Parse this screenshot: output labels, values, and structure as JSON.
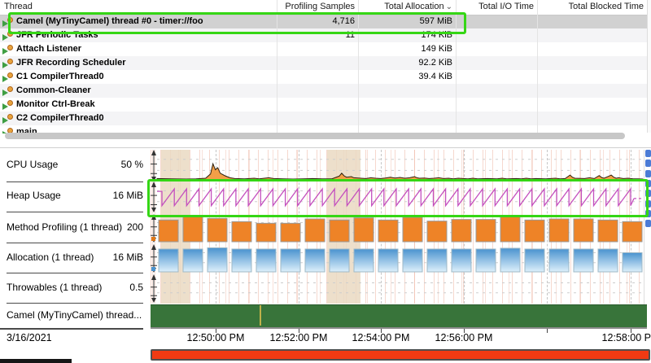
{
  "thread_table": {
    "columns": [
      {
        "label": "Thread",
        "align": "left"
      },
      {
        "label": "Profiling Samples",
        "align": "right"
      },
      {
        "label": "Total Allocation",
        "align": "right",
        "sorted": true
      },
      {
        "label": "Total I/O Time",
        "align": "right"
      },
      {
        "label": "Total Blocked Time",
        "align": "right"
      }
    ],
    "sort_indicator": "⌄",
    "rows": [
      {
        "thread": "Camel (MyTinyCamel) thread #0 - timer://foo",
        "samples": "4,716",
        "allocation": "597 MiB",
        "io": "",
        "blocked": "",
        "selected": true,
        "annotated": true
      },
      {
        "thread": "JFR Periodic Tasks",
        "samples": "11",
        "allocation": "174 KiB",
        "io": "",
        "blocked": ""
      },
      {
        "thread": "Attach Listener",
        "samples": "",
        "allocation": "149 KiB",
        "io": "",
        "blocked": ""
      },
      {
        "thread": "JFR Recording Scheduler",
        "samples": "",
        "allocation": "92.2 KiB",
        "io": "",
        "blocked": ""
      },
      {
        "thread": "C1 CompilerThread0",
        "samples": "",
        "allocation": "39.4 KiB",
        "io": "",
        "blocked": ""
      },
      {
        "thread": "Common-Cleaner",
        "samples": "",
        "allocation": "",
        "io": "",
        "blocked": ""
      },
      {
        "thread": "Monitor Ctrl-Break",
        "samples": "",
        "allocation": "",
        "io": "",
        "blocked": ""
      },
      {
        "thread": "C2 CompilerThread0",
        "samples": "",
        "allocation": "",
        "io": "",
        "blocked": ""
      },
      {
        "thread": "main",
        "samples": "",
        "allocation": "",
        "io": "",
        "blocked": ""
      }
    ]
  },
  "timeline": {
    "lanes": [
      {
        "label": "CPU Usage",
        "axis_tick": "50 %"
      },
      {
        "label": "Heap Usage",
        "axis_tick": "16 MiB",
        "annotated": true
      },
      {
        "label": "Method Profiling (1 thread)",
        "axis_tick": "200"
      },
      {
        "label": "Allocation (1 thread)",
        "axis_tick": "16 MiB"
      },
      {
        "label": "Throwables (1 thread)",
        "axis_tick": "0.5"
      },
      {
        "label": "Camel (MyTinyCamel) thread...",
        "axis_tick": ""
      }
    ],
    "date_label": "3/16/2021",
    "time_axis": {
      "labels": [
        "12:50:00 PM",
        "12:52:00 PM",
        "12:54:00 PM",
        "12:56:00 PM",
        "12:58:00 PM"
      ]
    }
  },
  "chart_data": [
    {
      "name": "cpu-usage",
      "type": "area",
      "ylabel": "CPU %",
      "ylim": [
        0,
        100
      ],
      "y_tick": 50,
      "points_pct": [
        [
          0,
          5
        ],
        [
          3,
          4
        ],
        [
          6,
          3
        ],
        [
          8,
          4
        ],
        [
          10,
          6
        ],
        [
          11,
          22
        ],
        [
          11.5,
          60
        ],
        [
          12,
          38
        ],
        [
          12.5,
          45
        ],
        [
          13,
          25
        ],
        [
          14,
          15
        ],
        [
          15,
          8
        ],
        [
          16,
          5
        ],
        [
          18,
          4
        ],
        [
          20,
          6
        ],
        [
          21,
          4
        ],
        [
          23,
          8
        ],
        [
          24,
          5
        ],
        [
          26,
          4
        ],
        [
          28,
          3
        ],
        [
          30,
          4
        ],
        [
          32,
          5
        ],
        [
          34,
          4
        ],
        [
          36,
          4
        ],
        [
          37.5,
          14
        ],
        [
          38,
          25
        ],
        [
          38.5,
          15
        ],
        [
          39,
          10
        ],
        [
          40,
          12
        ],
        [
          40.5,
          8
        ],
        [
          42,
          6
        ],
        [
          43,
          5
        ],
        [
          44,
          8
        ],
        [
          45,
          6
        ],
        [
          46,
          5
        ],
        [
          47,
          7
        ],
        [
          48,
          10
        ],
        [
          49,
          7
        ],
        [
          50,
          9
        ],
        [
          51,
          6
        ],
        [
          52,
          8
        ],
        [
          53,
          12
        ],
        [
          53.5,
          8
        ],
        [
          54,
          6
        ],
        [
          55,
          7
        ],
        [
          56,
          5
        ],
        [
          57,
          6
        ],
        [
          58,
          8
        ],
        [
          59,
          5
        ],
        [
          60,
          6
        ],
        [
          61,
          4
        ],
        [
          62,
          6
        ],
        [
          63,
          5
        ],
        [
          64,
          4
        ],
        [
          65,
          6
        ],
        [
          66,
          4
        ],
        [
          68,
          5
        ],
        [
          70,
          4
        ],
        [
          71,
          6
        ],
        [
          72,
          4
        ],
        [
          74,
          5
        ],
        [
          75,
          4
        ],
        [
          76,
          6
        ],
        [
          77,
          4
        ],
        [
          78,
          5
        ],
        [
          80,
          4
        ],
        [
          82,
          6
        ],
        [
          83,
          4
        ],
        [
          84,
          5
        ],
        [
          85,
          18
        ],
        [
          85.5,
          10
        ],
        [
          86,
          6
        ],
        [
          88,
          5
        ],
        [
          89,
          8
        ],
        [
          90,
          5
        ],
        [
          91,
          16
        ],
        [
          91.5,
          9
        ],
        [
          92,
          6
        ],
        [
          93,
          14
        ],
        [
          93.5,
          18
        ],
        [
          94,
          10
        ],
        [
          94.5,
          6
        ],
        [
          95,
          8
        ],
        [
          96,
          5
        ],
        [
          97,
          6
        ],
        [
          98,
          4
        ],
        [
          99,
          4
        ],
        [
          100,
          3
        ]
      ]
    },
    {
      "name": "heap-usage",
      "type": "line",
      "pattern": "sawtooth",
      "ylabel": "Heap MiB",
      "ylim": [
        0,
        20
      ],
      "y_tick": 16,
      "teeth": 38,
      "min_mib": 8,
      "max_mib": 16
    },
    {
      "name": "method-profiling-samples",
      "type": "bar",
      "ylim": [
        0,
        240
      ],
      "y_tick": 200,
      "values": [
        200,
        230,
        215,
        185,
        170,
        170,
        210,
        200,
        220,
        200,
        225,
        190,
        205,
        205,
        235,
        200,
        210,
        210,
        200,
        185
      ]
    },
    {
      "name": "allocation-per-interval",
      "type": "bar",
      "ylim": [
        0,
        32
      ],
      "y_tick": 16,
      "values": [
        28,
        28,
        29.5,
        28,
        28,
        28,
        28,
        28,
        28,
        28,
        28,
        28,
        28,
        28,
        29,
        28,
        28,
        28,
        28,
        23.5
      ]
    },
    {
      "name": "throwables",
      "type": "empty",
      "ylim": [
        0,
        1
      ],
      "y_tick": 0.5,
      "values": []
    },
    {
      "name": "camel-thread-activity",
      "type": "span",
      "color": "#38743a",
      "marker_x_pct": 22
    }
  ],
  "colors": {
    "selected_row": "#d1d1d1",
    "stripe": "#f4f4f6",
    "annotation_green": "#35d615",
    "cpu_fill": "#f29f48",
    "cpu_stroke": "#2e1f0e",
    "heap_line": "#c450be",
    "method_bar": "#ee8327",
    "alloc_bar_top": "#4a93cf",
    "alloc_bar_bottom": "#ddf0fb",
    "span_green": "#38743a",
    "range_red": "#f13a13",
    "tan_band": "#ead9c2"
  }
}
